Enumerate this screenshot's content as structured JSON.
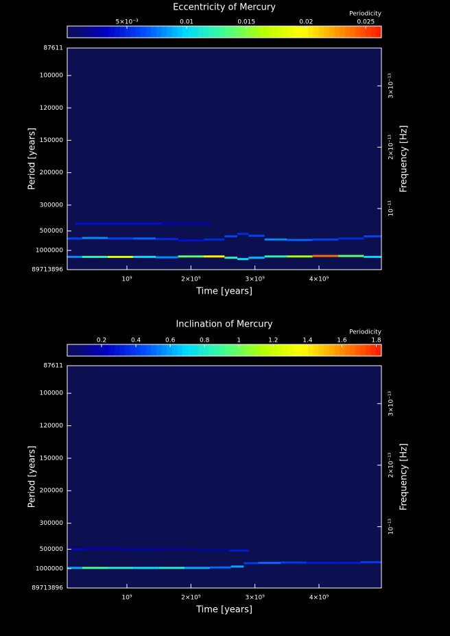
{
  "chart_data": [
    {
      "type": "heatmap",
      "title": "Eccentricity of Mercury",
      "colorbar_label": "Periodicity",
      "xlabel": "Time [years]",
      "ylabel": "Period [years]",
      "y2label": "Frequency [Hz]",
      "xlim": [
        68000000,
        4975000000
      ],
      "xticks": [
        {
          "value": 1000000000.0,
          "label": "10⁹"
        },
        {
          "value": 2000000000.0,
          "label": "2×10⁹"
        },
        {
          "value": 3000000000.0,
          "label": "3×10⁹"
        },
        {
          "value": 4000000000.0,
          "label": "4×10⁹"
        }
      ],
      "ylim": [
        87611,
        89713896
      ],
      "yscale": "reciprocal",
      "yticks": [
        87611,
        100000,
        120000,
        150000,
        200000,
        300000,
        500000,
        1000000,
        89713896
      ],
      "y2lim": [
        3.532e-16,
        3.6168e-13
      ],
      "y2ticks": [
        {
          "value": 1e-13,
          "label": "10⁻¹³"
        },
        {
          "value": 2e-13,
          "label": "2×10⁻¹³"
        },
        {
          "value": 3e-13,
          "label": "3×10⁻¹³"
        }
      ],
      "clim": [
        0,
        0.0263
      ],
      "cticks": [
        {
          "value": 0.005,
          "label": "5×10⁻³"
        },
        0.01,
        0.015,
        0.02,
        0.025
      ],
      "colormap": [
        "#0c0f50",
        "#0000c0",
        "#0050ff",
        "#00d8ff",
        "#40ff90",
        "#b8ff00",
        "#ffff00",
        "#ff8c00",
        "#ff1a00"
      ],
      "ridges": [
        {
          "x": [
            100000000.0,
            500000000.0,
            900000000.0,
            1300000000.0,
            1600000000.0,
            2000000000.0,
            2400000000.0,
            2650000000.0,
            2800000000.0,
            3000000000.0,
            3300000000.0,
            3700000000.0,
            4100000000.0,
            4500000000.0,
            4900000000.0
          ],
          "y": [
            1500000,
            1500000,
            1500000,
            1500000,
            1550000,
            1450000,
            1450000,
            1600000,
            1800000,
            1600000,
            1450000,
            1450000,
            1400000,
            1400000,
            1500000
          ],
          "values": [
            0.008,
            0.012,
            0.018,
            0.01,
            0.008,
            0.014,
            0.02,
            0.012,
            0.01,
            0.009,
            0.012,
            0.016,
            0.024,
            0.014,
            0.01
          ]
        },
        {
          "x": [
            100000000.0,
            500000000.0,
            900000000.0,
            1300000000.0,
            1600000000.0,
            2000000000.0,
            2400000000.0,
            2650000000.0,
            2800000000.0,
            3000000000.0,
            3300000000.0,
            3700000000.0,
            4100000000.0,
            4500000000.0,
            4900000000.0
          ],
          "y": [
            620000,
            610000,
            620000,
            620000,
            630000,
            660000,
            640000,
            580000,
            540000,
            570000,
            640000,
            650000,
            640000,
            620000,
            580000
          ],
          "values": [
            0.006,
            0.008,
            0.006,
            0.007,
            0.005,
            0.004,
            0.005,
            0.006,
            0.005,
            0.006,
            0.008,
            0.007,
            0.006,
            0.005,
            0.006
          ]
        },
        {
          "x": [
            300000000.0,
            800000000.0,
            1300000000.0,
            1800000000.0,
            2200000000.0
          ],
          "y": [
            420000,
            420000,
            420000,
            420000,
            420000
          ],
          "values": [
            0.004,
            0.004,
            0.004,
            0.003,
            0.003
          ]
        }
      ]
    },
    {
      "type": "heatmap",
      "title": "Inclination of Mercury",
      "colorbar_label": "Periodicity",
      "xlabel": "Time [years]",
      "ylabel": "Period [years]",
      "y2label": "Frequency [Hz]",
      "xlim": [
        68000000,
        4975000000
      ],
      "xticks": [
        {
          "value": 1000000000.0,
          "label": "10⁹"
        },
        {
          "value": 2000000000.0,
          "label": "2×10⁹"
        },
        {
          "value": 3000000000.0,
          "label": "3×10⁹"
        },
        {
          "value": 4000000000.0,
          "label": "4×10⁹"
        }
      ],
      "ylim": [
        87611,
        89713896
      ],
      "yscale": "reciprocal",
      "yticks": [
        87611,
        100000,
        120000,
        150000,
        200000,
        300000,
        500000,
        1000000,
        89713896
      ],
      "y2lim": [
        3.532e-16,
        3.6168e-13
      ],
      "y2ticks": [
        {
          "value": 1e-13,
          "label": "10⁻¹³"
        },
        {
          "value": 2e-13,
          "label": "2×10⁻¹³"
        },
        {
          "value": 3e-13,
          "label": "3×10⁻¹³"
        }
      ],
      "clim": [
        0,
        1.83
      ],
      "cticks": [
        0.2,
        0.4,
        0.6,
        0.8,
        1,
        1.2,
        1.4,
        1.6,
        1.8
      ],
      "colormap": [
        "#0c0f50",
        "#0000c0",
        "#0050ff",
        "#00d8ff",
        "#40ff90",
        "#b8ff00",
        "#ffff00",
        "#ff8c00",
        "#ff1a00"
      ],
      "ridges": [
        {
          "x": [
            100000000.0,
            500000000.0,
            900000000.0,
            1300000000.0,
            1700000000.0,
            2100000000.0,
            2500000000.0,
            2750000000.0,
            2900000000.0,
            3200000000.0,
            3600000000.0,
            4000000000.0,
            4400000000.0,
            4900000000.0
          ],
          "y": [
            960000,
            960000,
            960000,
            960000,
            960000,
            960000,
            940000,
            900000,
            780000,
            770000,
            760000,
            770000,
            770000,
            750000
          ],
          "values": [
            0.6,
            0.9,
            0.8,
            0.7,
            0.8,
            0.6,
            0.5,
            0.6,
            0.4,
            0.5,
            0.4,
            0.3,
            0.3,
            0.4
          ]
        },
        {
          "x": [
            100000000.0,
            600000000.0,
            1200000000.0,
            1800000000.0,
            2400000000.0,
            2800000000.0
          ],
          "y": [
            500000,
            490000,
            500000,
            500000,
            510000,
            520000
          ],
          "values": [
            0.25,
            0.2,
            0.18,
            0.15,
            0.15,
            0.3
          ]
        }
      ]
    }
  ]
}
